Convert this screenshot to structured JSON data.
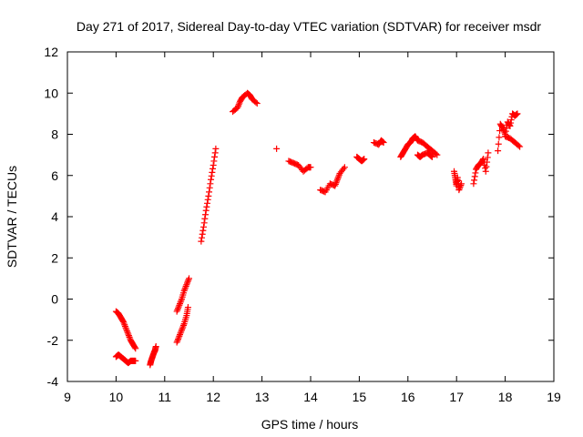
{
  "chart_data": {
    "type": "scatter",
    "title": "Day 271 of 2017, Sidereal Day-to-day VTEC variation (SDTVAR) for receiver msdr",
    "xlabel": "GPS time / hours",
    "ylabel": "SDTVAR / TECUs",
    "xlim": [
      9,
      19
    ],
    "ylim": [
      -4,
      12
    ],
    "xticks": [
      9,
      10,
      11,
      12,
      13,
      14,
      15,
      16,
      17,
      18,
      19
    ],
    "yticks": [
      -4,
      -2,
      0,
      2,
      4,
      6,
      8,
      10,
      12
    ],
    "marker": "+",
    "marker_color": "#ff0000",
    "grid": false,
    "legend": "none",
    "series": [
      {
        "name": "SDTVAR",
        "segments": [
          [
            [
              10.0,
              -0.6
            ],
            [
              10.05,
              -0.7
            ],
            [
              10.1,
              -0.9
            ],
            [
              10.15,
              -1.1
            ],
            [
              10.2,
              -1.4
            ],
            [
              10.25,
              -1.7
            ],
            [
              10.3,
              -2.0
            ],
            [
              10.35,
              -2.2
            ],
            [
              10.4,
              -2.4
            ]
          ],
          [
            [
              10.0,
              -2.8
            ],
            [
              10.05,
              -2.7
            ],
            [
              10.1,
              -2.8
            ],
            [
              10.15,
              -2.9
            ],
            [
              10.2,
              -3.0
            ],
            [
              10.25,
              -3.1
            ],
            [
              10.3,
              -3.0
            ],
            [
              10.35,
              -3.0
            ],
            [
              10.4,
              -3.0
            ]
          ],
          [
            [
              10.7,
              -3.2
            ],
            [
              10.72,
              -3.0
            ],
            [
              10.75,
              -2.8
            ],
            [
              10.78,
              -2.6
            ],
            [
              10.8,
              -2.5
            ],
            [
              10.82,
              -2.3
            ]
          ],
          [
            [
              11.25,
              -2.1
            ],
            [
              11.3,
              -1.8
            ],
            [
              11.35,
              -1.5
            ],
            [
              11.4,
              -1.2
            ],
            [
              11.45,
              -0.8
            ],
            [
              11.48,
              -0.4
            ]
          ],
          [
            [
              11.25,
              -0.6
            ],
            [
              11.3,
              -0.3
            ],
            [
              11.35,
              0.0
            ],
            [
              11.4,
              0.4
            ],
            [
              11.45,
              0.7
            ],
            [
              11.5,
              1.0
            ]
          ],
          [
            [
              11.75,
              2.8
            ],
            [
              11.8,
              3.5
            ],
            [
              11.85,
              4.3
            ],
            [
              11.9,
              5.0
            ],
            [
              11.95,
              5.8
            ],
            [
              12.0,
              6.5
            ],
            [
              12.05,
              7.3
            ]
          ],
          [
            [
              12.4,
              9.1
            ],
            [
              12.5,
              9.3
            ],
            [
              12.55,
              9.6
            ],
            [
              12.6,
              9.8
            ],
            [
              12.7,
              10.0
            ],
            [
              12.75,
              9.9
            ],
            [
              12.8,
              9.7
            ],
            [
              12.9,
              9.5
            ]
          ],
          [
            [
              13.3,
              7.3
            ]
          ],
          [
            [
              13.55,
              6.7
            ],
            [
              13.65,
              6.6
            ],
            [
              13.75,
              6.5
            ],
            [
              13.85,
              6.2
            ],
            [
              13.95,
              6.4
            ],
            [
              14.0,
              6.4
            ]
          ],
          [
            [
              14.2,
              5.3
            ],
            [
              14.3,
              5.2
            ],
            [
              14.4,
              5.6
            ],
            [
              14.5,
              5.5
            ],
            [
              14.55,
              5.8
            ],
            [
              14.6,
              6.1
            ],
            [
              14.7,
              6.4
            ]
          ],
          [
            [
              14.95,
              6.9
            ],
            [
              15.0,
              6.8
            ],
            [
              15.05,
              6.7
            ],
            [
              15.1,
              6.8
            ]
          ],
          [
            [
              15.3,
              7.6
            ],
            [
              15.4,
              7.5
            ],
            [
              15.45,
              7.7
            ],
            [
              15.5,
              7.6
            ]
          ],
          [
            [
              15.85,
              6.9
            ],
            [
              15.9,
              7.1
            ],
            [
              15.95,
              7.3
            ],
            [
              16.0,
              7.5
            ],
            [
              16.05,
              7.6
            ],
            [
              16.1,
              7.8
            ],
            [
              16.15,
              7.9
            ],
            [
              16.2,
              7.7
            ],
            [
              16.3,
              7.6
            ],
            [
              16.4,
              7.4
            ],
            [
              16.5,
              7.2
            ],
            [
              16.6,
              7.0
            ]
          ],
          [
            [
              16.2,
              7.0
            ],
            [
              16.25,
              6.9
            ],
            [
              16.3,
              7.0
            ],
            [
              16.4,
              7.1
            ],
            [
              16.45,
              7.0
            ],
            [
              16.5,
              6.9
            ]
          ],
          [
            [
              16.95,
              6.2
            ],
            [
              16.98,
              5.8
            ],
            [
              17.0,
              5.5
            ],
            [
              17.02,
              5.9
            ],
            [
              17.05,
              5.3
            ],
            [
              17.1,
              5.6
            ]
          ],
          [
            [
              17.35,
              5.6
            ],
            [
              17.4,
              6.3
            ],
            [
              17.45,
              6.5
            ],
            [
              17.5,
              6.6
            ],
            [
              17.55,
              6.8
            ],
            [
              17.6,
              6.2
            ],
            [
              17.65,
              7.1
            ]
          ],
          [
            [
              17.85,
              7.2
            ],
            [
              17.9,
              8.5
            ],
            [
              17.95,
              8.3
            ],
            [
              18.0,
              8.0
            ],
            [
              18.05,
              8.6
            ],
            [
              18.1,
              8.4
            ],
            [
              18.15,
              9.0
            ],
            [
              18.2,
              8.9
            ],
            [
              18.25,
              9.0
            ]
          ],
          [
            [
              18.0,
              7.9
            ],
            [
              18.1,
              7.8
            ],
            [
              18.2,
              7.6
            ],
            [
              18.3,
              7.4
            ]
          ]
        ]
      }
    ]
  }
}
